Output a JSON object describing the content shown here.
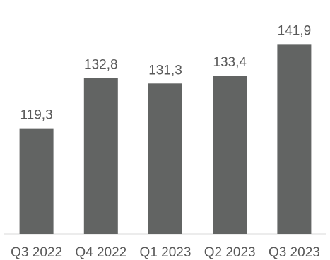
{
  "chart_data": {
    "type": "bar",
    "categories": [
      "Q3 2022",
      "Q4 2022",
      "Q1 2023",
      "Q2 2023",
      "Q3 2023"
    ],
    "values": [
      119.3,
      132.8,
      131.3,
      133.4,
      141.9
    ],
    "value_labels": [
      "119,3",
      "132,8",
      "131,3",
      "133,4",
      "141,9"
    ],
    "title": "",
    "xlabel": "",
    "ylabel": "",
    "ylim": [
      91,
      145
    ],
    "grid": false,
    "legend": "none",
    "bar_color": "#626463",
    "axis_color": "#d9d9d9",
    "label_color": "#595959"
  }
}
